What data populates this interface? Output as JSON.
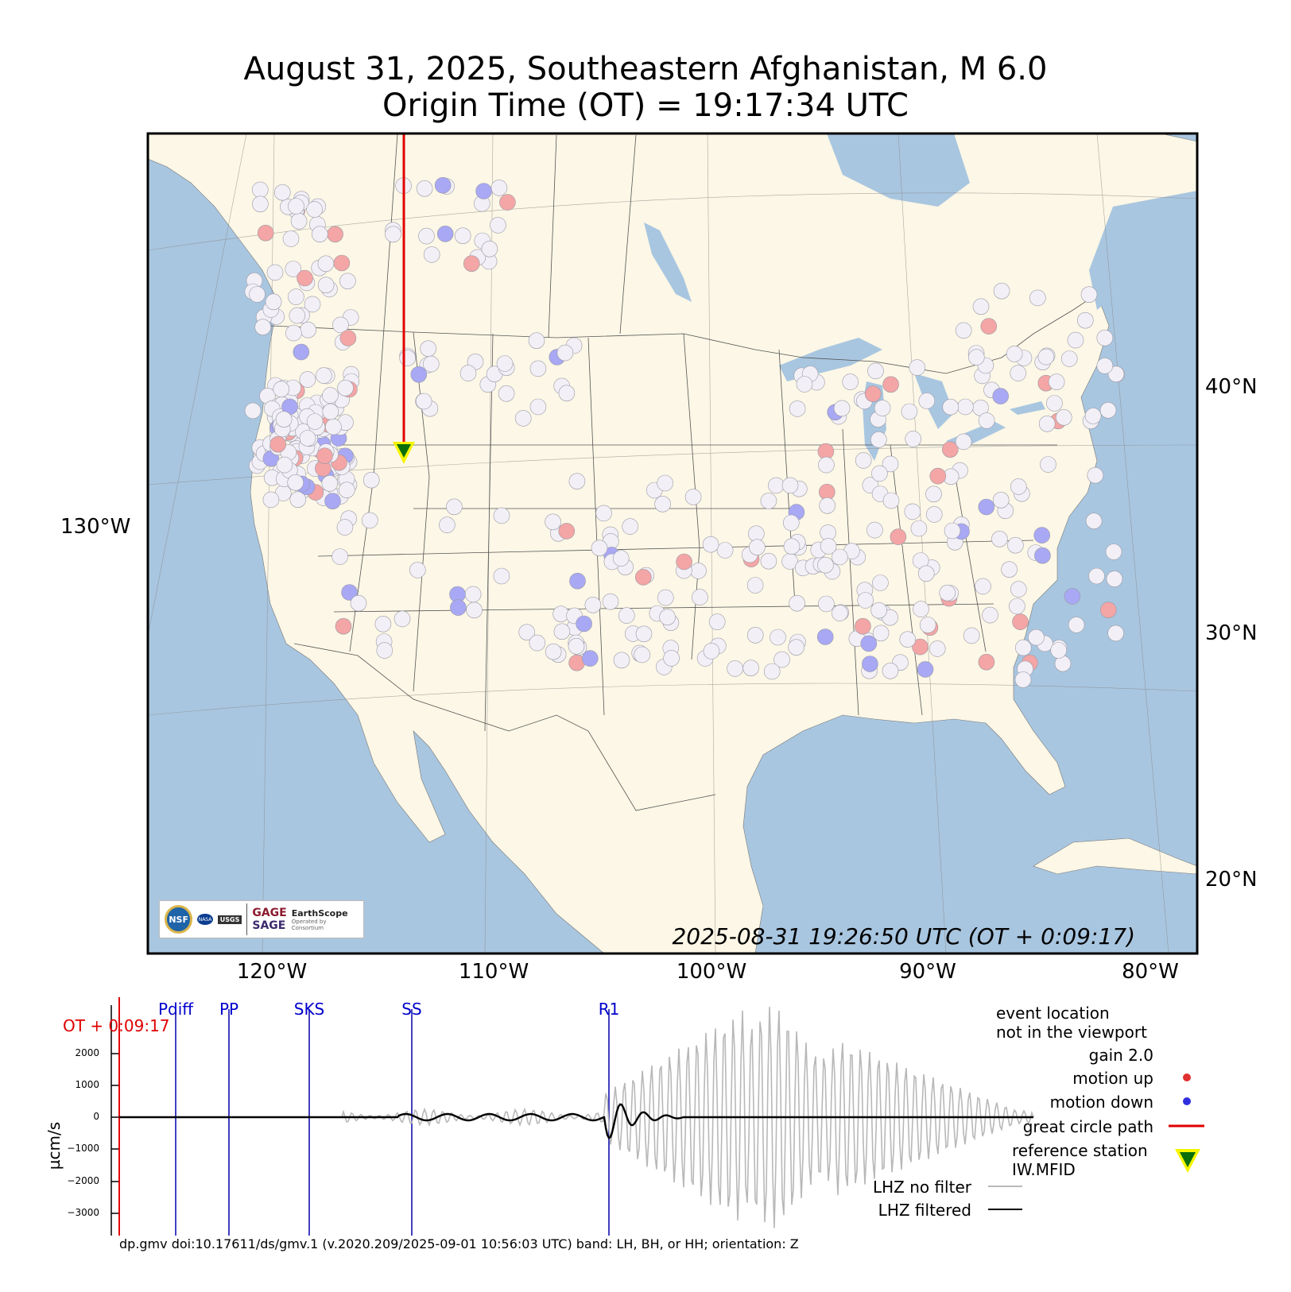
{
  "title": {
    "line1": "August 31, 2025, Southeastern Afghanistan, M 6.0",
    "line2": "Origin Time (OT) = 19:17:34 UTC"
  },
  "map": {
    "lat_labels": [
      "40°N",
      "30°N",
      "20°N"
    ],
    "lon_labels": [
      "120°W",
      "110°W",
      "100°W",
      "90°W",
      "80°W"
    ],
    "left_label": "130°W",
    "timestamp": "2025-08-31 19:26:50 UTC (OT + 0:09:17)",
    "colors": {
      "ocean": "#a9c6e0",
      "land": "#fcf7e6",
      "path": "#e00000",
      "station_up": "#f4a5a5",
      "station_down": "#a8a8f4",
      "station_neutral": "#f2eff6"
    },
    "logos": {
      "nsf": "NSF",
      "nasa": "NASA",
      "usgs": "USGS",
      "gage": "GAGE",
      "sage": "SAGE",
      "earthscope": "EarthScope",
      "earthscope_sub": "Operated by Consortium"
    }
  },
  "seismogram": {
    "ot_label": "OT + 0:09:17",
    "phases": [
      "Pdiff",
      "PP",
      "SKS",
      "SS",
      "R1"
    ],
    "y_ticks": [
      "2000",
      "1000",
      "0",
      "−1000",
      "−2000",
      "−3000"
    ],
    "y_label": "µcm/s",
    "legend": {
      "event_line1": "event location",
      "event_line2": "not in the viewport",
      "gain": "gain  2.0",
      "motion_up": "motion up",
      "motion_down": "motion down",
      "great_circle": "great circle path",
      "ref_line1": "reference station",
      "ref_line2": "IW.MFID",
      "nofilter": "LHZ no filter",
      "filtered": "LHZ filtered"
    },
    "footer": "dp.gmv doi:10.17611/ds/gmv.1 (v.2020.209/2025-09-01 10:56:03 UTC) band: LH, BH, or HH; orientation: Z"
  }
}
